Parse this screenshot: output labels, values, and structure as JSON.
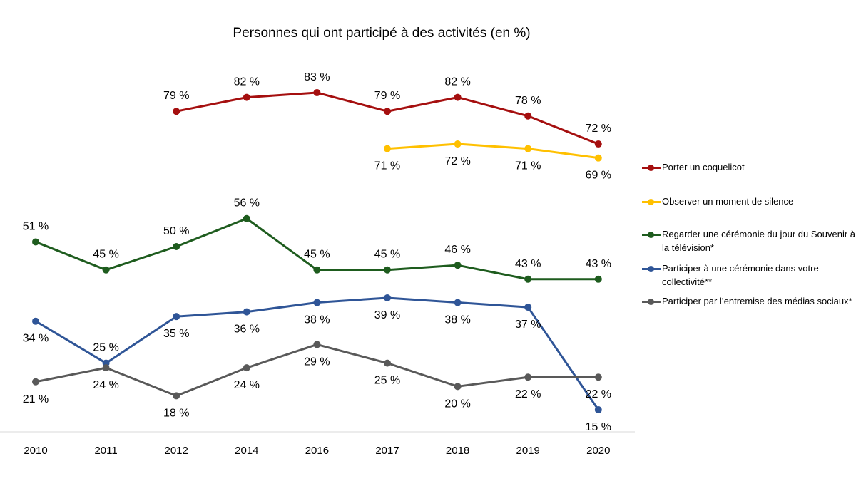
{
  "chart_data": {
    "type": "line",
    "title": "Personnes qui ont participé à des activités (en %)",
    "categories": [
      "2010",
      "2011",
      "2012",
      "2014",
      "2016",
      "2017",
      "2018",
      "2019",
      "2020"
    ],
    "value_suffix": " %",
    "legend_position": "right",
    "grid": false,
    "series": [
      {
        "name": "Porter un coquelicot",
        "color": "#A50F0F",
        "values": [
          null,
          null,
          79,
          82,
          83,
          79,
          82,
          78,
          72
        ]
      },
      {
        "name": "Observer un moment de silence",
        "color": "#FFC000",
        "values": [
          null,
          null,
          null,
          null,
          null,
          71,
          72,
          71,
          69
        ]
      },
      {
        "name": "Regarder une cérémonie du jour du Souvenir à la télévision*",
        "color": "#1E5C1E",
        "values": [
          51,
          45,
          50,
          56,
          45,
          45,
          46,
          43,
          43
        ]
      },
      {
        "name": "Participer à une cérémonie dans votre collectivité**",
        "color": "#2F5597",
        "values": [
          34,
          25,
          35,
          36,
          38,
          39,
          38,
          37,
          15
        ]
      },
      {
        "name": "Participer par l’entremise des médias sociaux*",
        "color": "#595959",
        "values": [
          21,
          24,
          18,
          24,
          29,
          25,
          20,
          22,
          22
        ]
      }
    ]
  }
}
